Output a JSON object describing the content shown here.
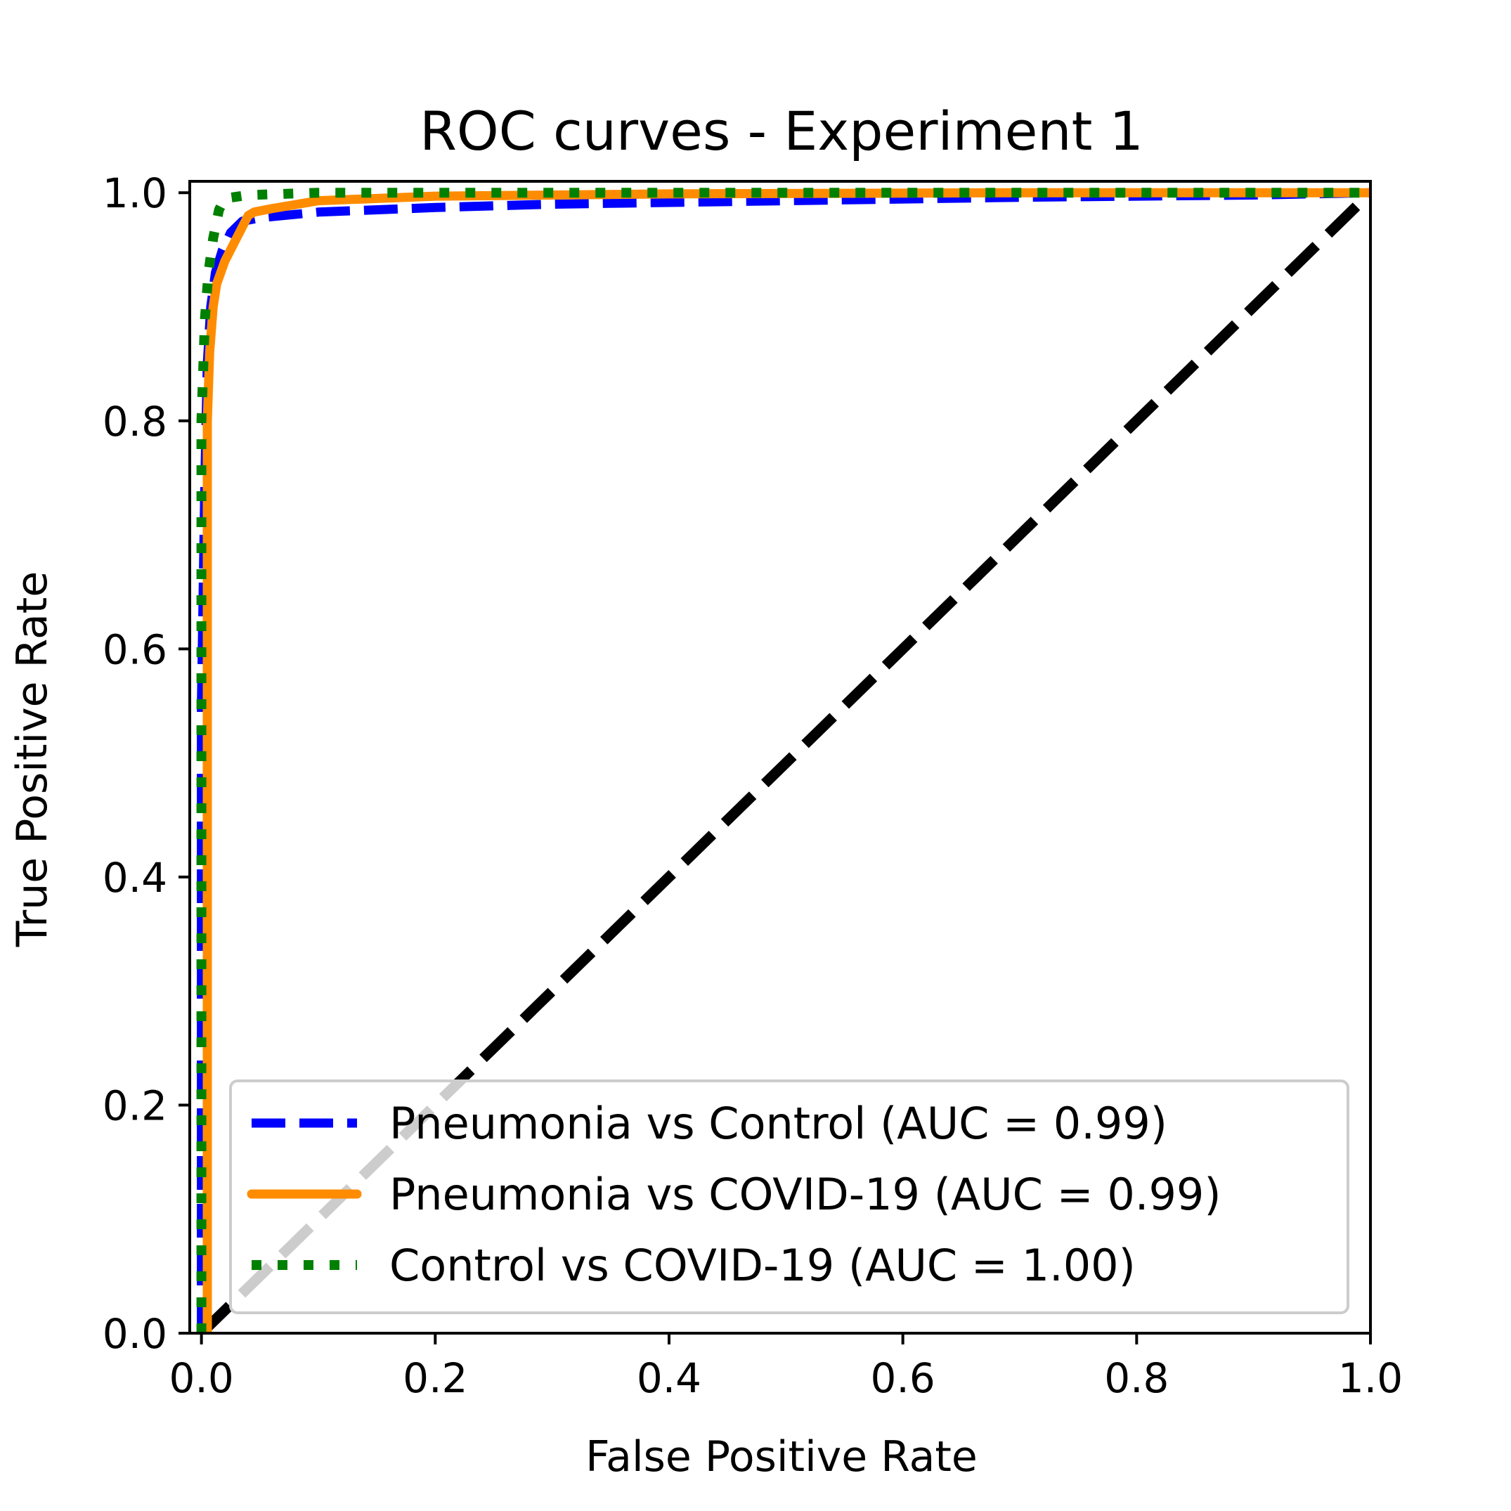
{
  "chart_data": {
    "type": "line",
    "title": "ROC curves - Experiment 1",
    "xlabel": "False Positive Rate",
    "ylabel": "True Positive Rate",
    "xlim": [
      -0.01,
      1.0
    ],
    "ylim": [
      0.0,
      1.01
    ],
    "xticks": [
      "0.0",
      "0.2",
      "0.4",
      "0.6",
      "0.8",
      "1.0"
    ],
    "yticks": [
      "0.0",
      "0.2",
      "0.4",
      "0.6",
      "0.8",
      "1.0"
    ],
    "grid": false,
    "legend_position": "lower-right",
    "series": [
      {
        "name": "Pneumonia vs Control (AUC = 0.99)",
        "color": "#0000ff",
        "style": "dashed",
        "x": [
          0.0,
          0.0,
          0.003,
          0.005,
          0.008,
          0.012,
          0.018,
          0.025,
          0.035,
          0.05,
          0.1,
          0.2,
          0.3,
          0.5,
          0.7,
          0.9,
          1.0
        ],
        "y": [
          0.0,
          0.55,
          0.75,
          0.85,
          0.9,
          0.93,
          0.95,
          0.965,
          0.975,
          0.978,
          0.983,
          0.987,
          0.99,
          0.993,
          0.996,
          0.998,
          1.0
        ]
      },
      {
        "name": "Pneumonia vs COVID-19 (AUC = 0.99)",
        "color": "#ff8c00",
        "style": "solid",
        "x": [
          0.005,
          0.005,
          0.007,
          0.01,
          0.013,
          0.02,
          0.03,
          0.04,
          0.045,
          0.06,
          0.1,
          0.2,
          0.4,
          0.7,
          1.0
        ],
        "y": [
          0.0,
          0.8,
          0.86,
          0.9,
          0.92,
          0.94,
          0.96,
          0.98,
          0.983,
          0.986,
          0.993,
          0.997,
          0.999,
          1.0,
          1.0
        ]
      },
      {
        "name": "Control vs COVID-19 (AUC = 1.00)",
        "color": "#008000",
        "style": "dotted",
        "x": [
          0.0,
          0.0,
          0.003,
          0.006,
          0.01,
          0.015,
          0.02,
          0.04,
          0.1,
          0.3,
          0.6,
          1.0
        ],
        "y": [
          0.0,
          0.8,
          0.89,
          0.93,
          0.96,
          0.985,
          0.995,
          0.998,
          1.0,
          1.0,
          1.0,
          1.0
        ]
      },
      {
        "name": "",
        "color": "#000000",
        "style": "dashed",
        "x": [
          0.0,
          1.0
        ],
        "y": [
          0.0,
          1.0
        ]
      }
    ]
  }
}
